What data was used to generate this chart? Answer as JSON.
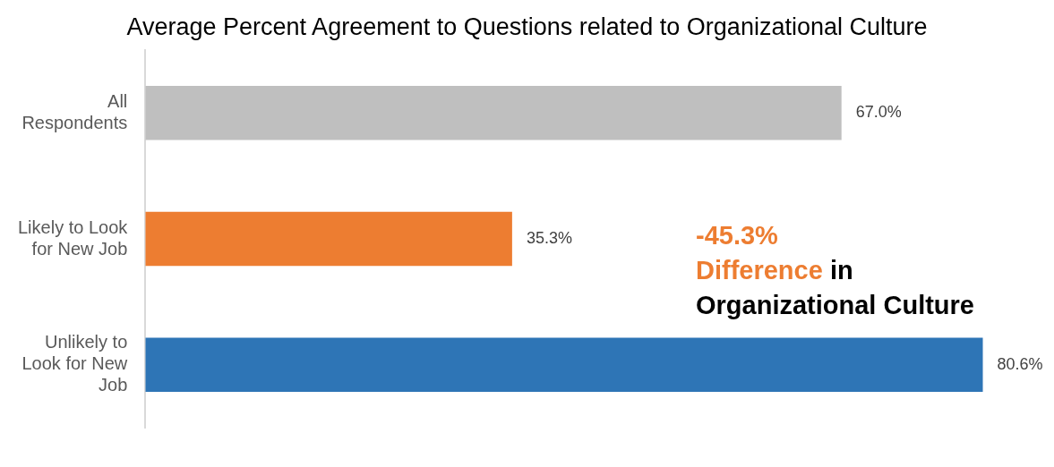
{
  "chart_data": {
    "type": "bar",
    "orientation": "horizontal",
    "title": "Average Percent Agreement to Questions related to Organizational Culture",
    "categories": [
      "All\nRespondents",
      "Likely to Look\nfor New Job",
      "Unlikely to\nLook for New\nJob"
    ],
    "values": [
      67.0,
      35.3,
      80.6
    ],
    "colors": [
      "#bfbfbf",
      "#ed7d31",
      "#2e75b6"
    ],
    "value_labels": [
      "67.0%",
      "35.3%",
      "80.6%"
    ],
    "annotations": [
      "-45.3%",
      "Difference",
      "in",
      "Organizational Culture"
    ]
  }
}
